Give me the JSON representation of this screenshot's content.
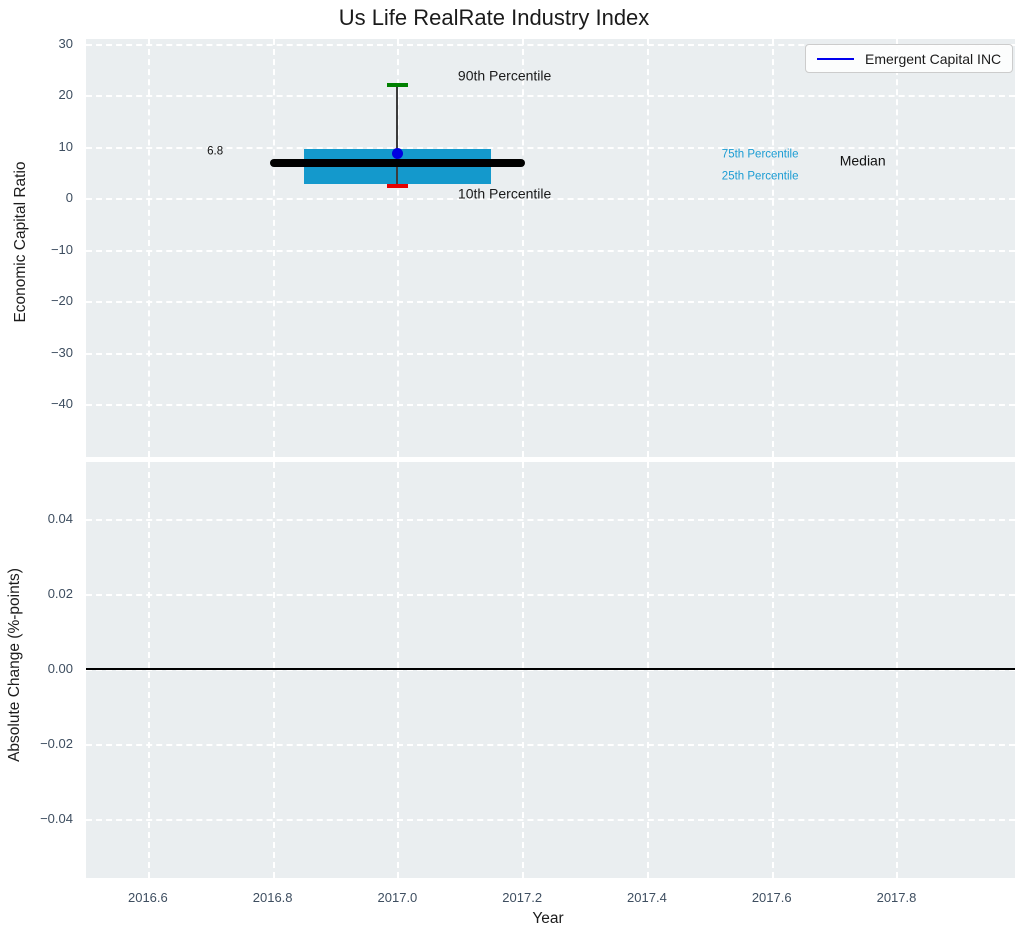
{
  "chart_data": {
    "type": "boxplot",
    "title": "Us Life RealRate Industry Index",
    "xlabel": "Year",
    "x_axis": {
      "ticks": [
        2016.6,
        2016.8,
        2017.0,
        2017.2,
        2017.4,
        2017.6,
        2017.8
      ],
      "xlim": [
        2016.5,
        2017.99
      ]
    },
    "legend": {
      "label": "Emergent Capital INC",
      "position": "upper right"
    },
    "subplots": [
      {
        "name": "economic-capital-ratio",
        "ylabel": "Economic Capital Ratio",
        "yticks": [
          30,
          20,
          10,
          0,
          -10,
          -20,
          -30,
          -40
        ],
        "ylim": [
          -50.3,
          30.97
        ],
        "grid": true,
        "boxplot": {
          "x": 2017.0,
          "p90": 22.0,
          "p75": 9.5,
          "median": 6.8,
          "p25": 2.8,
          "p10": 2.4,
          "median_label": "6.8",
          "box_halfwidth": 0.15,
          "median_halfwidth": 0.205,
          "cap_halfwidth": 0.017
        },
        "company_point": {
          "name": "Emergent Capital INC",
          "x": 2017.0,
          "y": 8.8
        },
        "annotations": [
          {
            "text": "90th Percentile",
            "x": 2017.097,
            "y": 23.8,
            "size": 14,
            "color": "#1a1a1a"
          },
          {
            "text": "10th Percentile",
            "x": 2017.097,
            "y": 0.9,
            "size": 14,
            "color": "#1a1a1a"
          },
          {
            "text": "75th Percentile",
            "x": 2017.52,
            "y": 8.4,
            "size": 11.5,
            "color": "#1b9cd3"
          },
          {
            "text": "25th Percentile",
            "x": 2017.52,
            "y": 4.1,
            "size": 11.5,
            "color": "#1b9cd3"
          },
          {
            "text": "Median",
            "x": 2017.709,
            "y": 7.2,
            "size": 14,
            "color": "#111111"
          },
          {
            "text": "6.8",
            "x": 2016.695,
            "y": 8.95,
            "size": 11.5,
            "color": "#111111"
          }
        ]
      },
      {
        "name": "absolute-change",
        "ylabel": "Absolute Change (%-points)",
        "yticks": [
          0.04,
          0.02,
          0.0,
          -0.02,
          -0.04
        ],
        "ylim": [
          -0.0558,
          0.0552
        ],
        "grid": true,
        "zero_line": 0.0
      }
    ],
    "colors": {
      "plot_background": "#eaeef0",
      "grid": "#ffffff",
      "box_fill": "#1499cc",
      "median_line": "#000000",
      "whisker": "#3c3c3c",
      "p90_cap": "#008000",
      "p10_cap": "#e60000",
      "company_marker": "#0000e0",
      "legend_line": "#0000ee",
      "zero_line": "#000000",
      "tick_label": "#3e4e60"
    }
  }
}
